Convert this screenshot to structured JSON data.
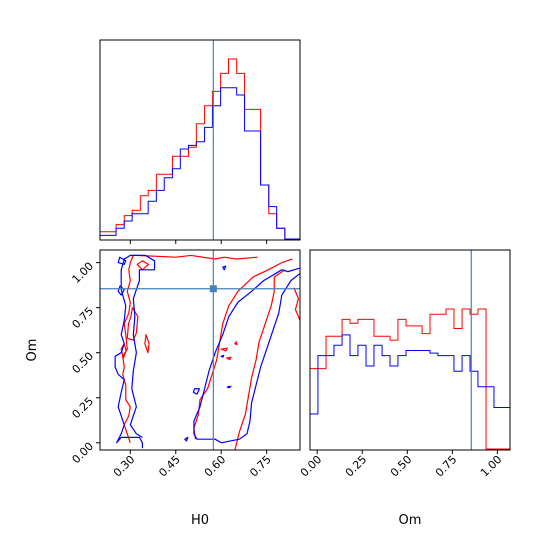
{
  "chart_data": {
    "type": "corner",
    "parameters": [
      "H0",
      "Om"
    ],
    "colors": {
      "series_a": "#ff0000",
      "series_b": "#0000ff",
      "truth": "#4682b4"
    },
    "truth": {
      "H0": 0.574,
      "Om": 0.855
    },
    "axes": {
      "H0": {
        "label": "H0",
        "range": [
          0.2,
          0.86
        ],
        "ticks": [
          0.3,
          0.45,
          0.6,
          0.75
        ],
        "tick_labels": [
          "0.30",
          "0.45",
          "0.60",
          "0.75"
        ]
      },
      "Om": {
        "label": "Om",
        "range": [
          -0.04,
          1.07
        ],
        "ticks": [
          0.0,
          0.25,
          0.5,
          0.75,
          1.0
        ],
        "tick_labels": [
          "0.00",
          "0.25",
          "0.50",
          "0.75",
          "1.00"
        ]
      }
    },
    "hist_H0": {
      "bin_edges": [
        0.2,
        0.227,
        0.253,
        0.28,
        0.306,
        0.333,
        0.359,
        0.386,
        0.412,
        0.439,
        0.465,
        0.492,
        0.518,
        0.545,
        0.571,
        0.598,
        0.624,
        0.651,
        0.677,
        0.704,
        0.73,
        0.757,
        0.783,
        0.81,
        0.836,
        0.86
      ],
      "series_a": [
        0.04,
        0.04,
        0.08,
        0.13,
        0.16,
        0.24,
        0.27,
        0.36,
        0.36,
        0.46,
        0.46,
        0.51,
        0.64,
        0.74,
        0.82,
        0.92,
        1.0,
        0.92,
        0.72,
        0.72,
        0.3,
        0.14,
        0.06,
        0.0,
        0.0
      ],
      "series_b": [
        0.02,
        0.02,
        0.06,
        0.1,
        0.14,
        0.14,
        0.21,
        0.27,
        0.34,
        0.39,
        0.5,
        0.52,
        0.54,
        0.62,
        0.74,
        0.84,
        0.84,
        0.8,
        0.6,
        0.6,
        0.3,
        0.18,
        0.06,
        0.0,
        0.0
      ]
    },
    "hist_Om": {
      "bin_edges": [
        -0.04,
        0.004,
        0.049,
        0.093,
        0.138,
        0.182,
        0.226,
        0.271,
        0.315,
        0.36,
        0.404,
        0.448,
        0.493,
        0.537,
        0.582,
        0.626,
        0.67,
        0.715,
        0.759,
        0.804,
        0.848,
        0.892,
        0.937,
        0.981,
        1.026,
        1.07
      ],
      "series_a": [
        0.62,
        0.62,
        0.87,
        0.87,
        1.0,
        0.97,
        1.0,
        1.0,
        0.87,
        0.87,
        0.84,
        1.0,
        0.95,
        0.95,
        0.89,
        1.04,
        1.04,
        1.08,
        0.93,
        1.08,
        1.04,
        1.08,
        0.0,
        0.0,
        0.0
      ],
      "series_b": [
        0.27,
        0.72,
        0.72,
        0.8,
        0.88,
        0.72,
        0.8,
        0.64,
        0.8,
        0.72,
        0.64,
        0.72,
        0.76,
        0.76,
        0.76,
        0.74,
        0.72,
        0.72,
        0.6,
        0.72,
        0.6,
        0.48,
        0.48,
        0.32,
        0.32
      ]
    },
    "contours_H0_Om": {
      "series_a": [
        {
          "closed": false,
          "points": [
            [
              0.3,
              0.0
            ],
            [
              0.29,
              0.05
            ],
            [
              0.28,
              0.1
            ],
            [
              0.295,
              0.15
            ],
            [
              0.3,
              0.2
            ],
            [
              0.285,
              0.24
            ],
            [
              0.285,
              0.32
            ],
            [
              0.275,
              0.38
            ],
            [
              0.28,
              0.42
            ],
            [
              0.275,
              0.48
            ],
            [
              0.29,
              0.52
            ],
            [
              0.285,
              0.6
            ],
            [
              0.28,
              0.66
            ],
            [
              0.295,
              0.72
            ],
            [
              0.3,
              0.78
            ],
            [
              0.29,
              0.84
            ],
            [
              0.3,
              0.9
            ],
            [
              0.295,
              0.96
            ],
            [
              0.3,
              1.0
            ],
            [
              0.31,
              1.04
            ],
            [
              0.32,
              1.04
            ],
            [
              0.45,
              1.03
            ],
            [
              0.5,
              1.04
            ],
            [
              0.58,
              1.02
            ],
            [
              0.61,
              1.03
            ],
            [
              0.65,
              1.02
            ],
            [
              0.72,
              1.03
            ]
          ]
        },
        {
          "closed": false,
          "points": [
            [
              0.515,
              0.02
            ],
            [
              0.51,
              0.08
            ],
            [
              0.525,
              0.16
            ],
            [
              0.53,
              0.24
            ],
            [
              0.555,
              0.3
            ],
            [
              0.57,
              0.38
            ],
            [
              0.585,
              0.46
            ],
            [
              0.595,
              0.56
            ],
            [
              0.605,
              0.66
            ],
            [
              0.625,
              0.76
            ],
            [
              0.655,
              0.84
            ],
            [
              0.705,
              0.92
            ],
            [
              0.755,
              0.96
            ],
            [
              0.8,
              1.0
            ],
            [
              0.835,
              1.02
            ]
          ]
        },
        {
          "closed": false,
          "points": [
            [
              0.645,
              -0.04
            ],
            [
              0.66,
              0.06
            ],
            [
              0.68,
              0.16
            ],
            [
              0.69,
              0.26
            ],
            [
              0.7,
              0.36
            ],
            [
              0.715,
              0.46
            ],
            [
              0.725,
              0.56
            ],
            [
              0.745,
              0.66
            ],
            [
              0.765,
              0.76
            ],
            [
              0.775,
              0.84
            ],
            [
              0.775,
              0.92
            ],
            [
              0.81,
              0.96
            ]
          ]
        },
        {
          "closed": false,
          "points": [
            [
              0.86,
              0.68
            ],
            [
              0.845,
              0.74
            ],
            [
              0.855,
              0.8
            ],
            [
              0.84,
              0.86
            ]
          ]
        },
        {
          "closed": true,
          "points": [
            [
              0.307,
              0.75
            ],
            [
              0.325,
              0.7
            ],
            [
              0.32,
              0.61
            ],
            [
              0.31,
              0.57
            ],
            [
              0.29,
              0.58
            ],
            [
              0.294,
              0.66
            ],
            [
              0.302,
              0.7
            ]
          ]
        },
        {
          "closed": true,
          "points": [
            [
              0.277,
              0.47
            ],
            [
              0.286,
              0.51
            ],
            [
              0.28,
              0.55
            ],
            [
              0.27,
              0.52
            ]
          ]
        },
        {
          "closed": true,
          "points": [
            [
              0.323,
              0.99
            ],
            [
              0.34,
              1.01
            ],
            [
              0.36,
              0.99
            ],
            [
              0.34,
              0.96
            ]
          ]
        },
        {
          "closed": true,
          "points": [
            [
              0.352,
              0.6
            ],
            [
              0.362,
              0.55
            ],
            [
              0.358,
              0.5
            ],
            [
              0.348,
              0.55
            ]
          ]
        },
        {
          "closed": true,
          "points": [
            [
              0.6,
              0.52
            ],
            [
              0.62,
              0.525
            ],
            [
              0.615,
              0.51
            ]
          ]
        },
        {
          "closed": true,
          "points": [
            [
              0.645,
              0.55
            ],
            [
              0.65,
              0.56
            ],
            [
              0.652,
              0.545
            ]
          ]
        },
        {
          "closed": true,
          "points": [
            [
              0.618,
              0.47
            ],
            [
              0.632,
              0.475
            ],
            [
              0.628,
              0.462
            ]
          ]
        }
      ],
      "series_b": [
        {
          "closed": false,
          "points": [
            [
              0.34,
              -0.03
            ],
            [
              0.34,
              0.0
            ],
            [
              0.33,
              0.03
            ],
            [
              0.27,
              0.03
            ],
            [
              0.255,
              0.0
            ],
            [
              0.27,
              0.05
            ],
            [
              0.28,
              0.1
            ],
            [
              0.26,
              0.2
            ],
            [
              0.27,
              0.28
            ],
            [
              0.28,
              0.35
            ],
            [
              0.26,
              0.38
            ],
            [
              0.25,
              0.42
            ],
            [
              0.25,
              0.48
            ],
            [
              0.27,
              0.5
            ],
            [
              0.28,
              0.55
            ],
            [
              0.27,
              0.6
            ],
            [
              0.28,
              0.68
            ],
            [
              0.285,
              0.76
            ],
            [
              0.27,
              0.85
            ],
            [
              0.27,
              0.92
            ],
            [
              0.27,
              0.96
            ],
            [
              0.28,
              1.02
            ],
            [
              0.3,
              1.04
            ],
            [
              0.35,
              1.04
            ],
            [
              0.38,
              1.01
            ],
            [
              0.38,
              0.96
            ],
            [
              0.33,
              0.96
            ],
            [
              0.33,
              0.9
            ],
            [
              0.31,
              0.8
            ],
            [
              0.315,
              0.7
            ],
            [
              0.31,
              0.6
            ],
            [
              0.32,
              0.5
            ],
            [
              0.31,
              0.4
            ],
            [
              0.305,
              0.3
            ],
            [
              0.32,
              0.2
            ],
            [
              0.3,
              0.1
            ],
            [
              0.32,
              0.05
            ],
            [
              0.34,
              0.03
            ]
          ]
        },
        {
          "closed": false,
          "points": [
            [
              0.86,
              0.97
            ],
            [
              0.82,
              0.95
            ],
            [
              0.8,
              0.96
            ],
            [
              0.74,
              0.9
            ],
            [
              0.7,
              0.84
            ],
            [
              0.655,
              0.78
            ],
            [
              0.625,
              0.7
            ],
            [
              0.605,
              0.6
            ],
            [
              0.58,
              0.5
            ],
            [
              0.56,
              0.4
            ],
            [
              0.545,
              0.3
            ],
            [
              0.53,
              0.2
            ],
            [
              0.51,
              0.12
            ],
            [
              0.51,
              0.05
            ],
            [
              0.52,
              0.02
            ],
            [
              0.58,
              0.02
            ],
            [
              0.6,
              0.0
            ],
            [
              0.66,
              0.02
            ],
            [
              0.685,
              0.05
            ],
            [
              0.695,
              0.12
            ],
            [
              0.7,
              0.22
            ],
            [
              0.715,
              0.32
            ],
            [
              0.73,
              0.42
            ],
            [
              0.75,
              0.52
            ],
            [
              0.77,
              0.62
            ],
            [
              0.79,
              0.72
            ],
            [
              0.8,
              0.82
            ],
            [
              0.83,
              0.9
            ],
            [
              0.86,
              0.94
            ]
          ]
        },
        {
          "closed": true,
          "points": [
            [
              0.28,
              0.99
            ],
            [
              0.285,
              1.01
            ],
            [
              0.265,
              1.03
            ],
            [
              0.26,
              1.0
            ]
          ]
        },
        {
          "closed": true,
          "points": [
            [
              0.27,
              0.82
            ],
            [
              0.28,
              0.85
            ],
            [
              0.266,
              0.87
            ],
            [
              0.26,
              0.84
            ]
          ]
        },
        {
          "closed": true,
          "points": [
            [
              0.52,
              0.27
            ],
            [
              0.528,
              0.3
            ],
            [
              0.512,
              0.3
            ],
            [
              0.508,
              0.28
            ]
          ]
        },
        {
          "closed": true,
          "points": [
            [
              0.48,
              0.02
            ],
            [
              0.49,
              0.03
            ],
            [
              0.485,
              0.01
            ]
          ]
        },
        {
          "closed": true,
          "points": [
            [
              0.61,
              0.96
            ],
            [
              0.615,
              0.98
            ],
            [
              0.605,
              0.975
            ]
          ]
        },
        {
          "closed": true,
          "points": [
            [
              0.6,
              0.48
            ],
            [
              0.608,
              0.485
            ],
            [
              0.606,
              0.476
            ]
          ]
        },
        {
          "closed": true,
          "points": [
            [
              0.62,
              0.31
            ],
            [
              0.632,
              0.313
            ],
            [
              0.626,
              0.305
            ]
          ]
        }
      ]
    }
  }
}
